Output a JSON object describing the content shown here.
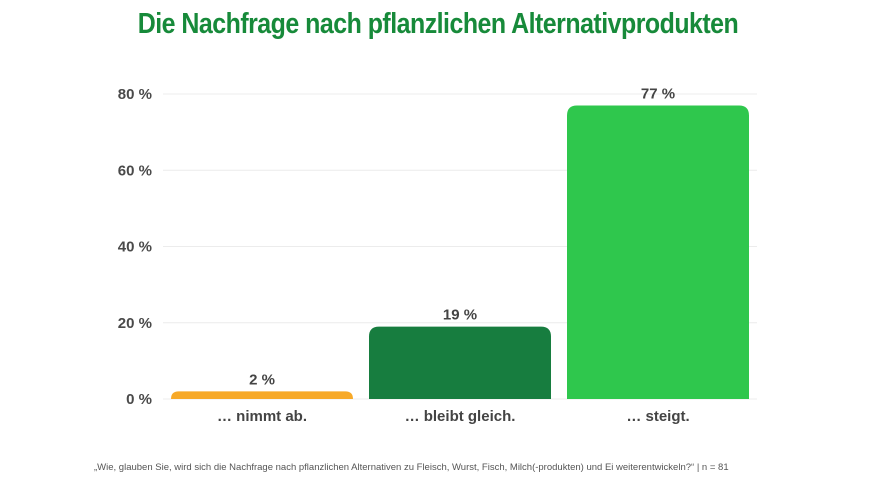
{
  "chart_data": {
    "type": "bar",
    "title": "Die Nachfrage nach pflanzlichen Alternativprodukten",
    "categories": [
      "… nimmt ab.",
      "… bleibt gleich.",
      "… steigt."
    ],
    "values": [
      2,
      19,
      77
    ],
    "value_labels": [
      "2 %",
      "19 %",
      "77 %"
    ],
    "colors": [
      "#f7a928",
      "#177d3f",
      "#2fc74d"
    ],
    "xlabel": "",
    "ylabel": "",
    "ylim": [
      0,
      80
    ],
    "yticks": [
      0,
      20,
      40,
      60,
      80
    ],
    "ytick_labels": [
      "0 %",
      "20 %",
      "40 %",
      "60 %",
      "80 %"
    ],
    "grid": true,
    "legend": "none"
  },
  "footnote": "„Wie, glauben Sie, wird sich die Nachfrage nach pflanzlichen Alternativen zu Fleisch, Wurst, Fisch, Milch(-produkten) und Ei weiterentwickeln?“ | n = 81"
}
